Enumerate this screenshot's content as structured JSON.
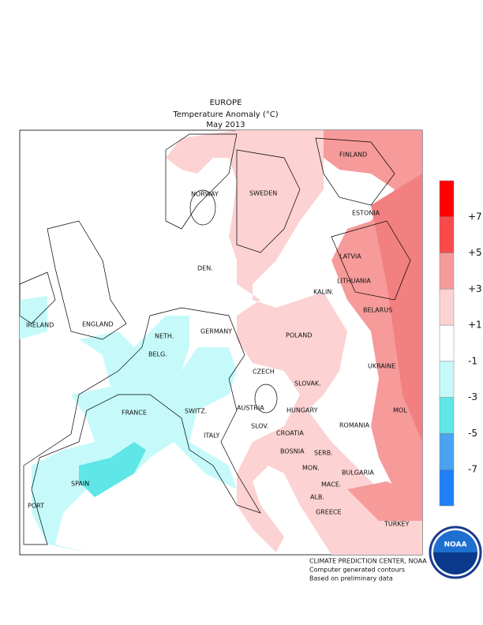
{
  "header": {
    "region": "EUROPE",
    "title": "Temperature Anomaly (°C)",
    "period": "May 2013"
  },
  "labels": [
    "FINLAND",
    "NORWAY",
    "SWEDEN",
    "ESTONIA",
    "LATVIA",
    "DEN.",
    "LITHUANIA",
    "KALIN.",
    "ENGLAND",
    "IRELAND",
    "NETH.",
    "GERMANY",
    "POLAND",
    "BELARUS",
    "BELG.",
    "CZECH",
    "UKRAINE",
    "SLOVAK.",
    "FRANCE",
    "SWITZ.",
    "AUSTRIA",
    "HUNGARY",
    "MOL",
    "ITALY",
    "SLOV.",
    "CROATIA",
    "ROMANIA",
    "BOSNIA",
    "SERB.",
    "MON.",
    "BULGARIA",
    "SPAIN",
    "PORT",
    "ALB.",
    "MACE.",
    "GREECE",
    "TURKEY"
  ],
  "legend": {
    "labels": [
      "+7",
      "+5",
      "+3",
      "+1",
      "-1",
      "-3",
      "-5",
      "-7"
    ],
    "colors": [
      "#ff0000",
      "#f84a4a",
      "#f79a9a",
      "#fcd2d2",
      "#ffffff",
      "#c6fafa",
      "#5fe6e6",
      "#4aa2f2",
      "#1e80f5"
    ]
  },
  "footer": [
    "CLIMATE PREDICTION CENTER, NOAA",
    "Computer generated contours",
    "Based on preliminary data"
  ],
  "logo": "NOAA"
}
